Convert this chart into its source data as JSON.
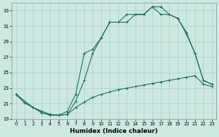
{
  "xlabel": "Humidex (Indice chaleur)",
  "bg_color": "#cce8e0",
  "grid_color": "#aacccc",
  "line_color": "#1a6b5a",
  "xlim": [
    -0.5,
    23.5
  ],
  "ylim": [
    19,
    34
  ],
  "yticks": [
    19,
    21,
    23,
    25,
    27,
    29,
    31,
    33
  ],
  "xticks": [
    0,
    1,
    2,
    3,
    4,
    5,
    6,
    7,
    8,
    9,
    10,
    11,
    12,
    13,
    14,
    15,
    16,
    17,
    18,
    19,
    20,
    21,
    22,
    23
  ],
  "line1_x": [
    0,
    1,
    2,
    3,
    4,
    5,
    6,
    7,
    8,
    9,
    10,
    11,
    12,
    13,
    14,
    15,
    16,
    17,
    18,
    19,
    20,
    21,
    22,
    23
  ],
  "line1_y": [
    22.2,
    21.1,
    20.5,
    20.0,
    19.6,
    19.5,
    19.6,
    20.5,
    21.2,
    21.8,
    22.2,
    22.5,
    22.8,
    23.0,
    23.2,
    23.4,
    23.6,
    23.8,
    24.0,
    24.2,
    24.4,
    24.6,
    23.5,
    23.2
  ],
  "line2_x": [
    0,
    1,
    2,
    3,
    4,
    5,
    6,
    7,
    8,
    9,
    10,
    11,
    12,
    13,
    14,
    15,
    16,
    17,
    18,
    19,
    20,
    21,
    22,
    23
  ],
  "line2_y": [
    22.2,
    21.1,
    20.5,
    20.0,
    19.6,
    19.5,
    19.6,
    21.3,
    24.0,
    27.5,
    29.5,
    31.5,
    31.5,
    31.5,
    32.5,
    32.5,
    33.5,
    32.5,
    32.5,
    32.0,
    30.2,
    27.5,
    24.0,
    23.5
  ],
  "line3_x": [
    0,
    2,
    3,
    4,
    5,
    6,
    7,
    8,
    9,
    10,
    11,
    12,
    13,
    14,
    15,
    16,
    17,
    18,
    19,
    20,
    21,
    22,
    23
  ],
  "line3_y": [
    22.2,
    20.5,
    19.8,
    19.5,
    19.5,
    20.0,
    22.2,
    27.5,
    28.0,
    29.5,
    31.5,
    31.5,
    32.5,
    32.5,
    32.5,
    33.5,
    33.5,
    32.5,
    32.0,
    30.0,
    27.5,
    24.0,
    23.5
  ]
}
